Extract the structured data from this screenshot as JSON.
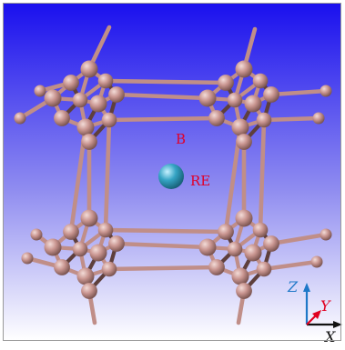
{
  "labels": {
    "boron": "B",
    "rare_earth": "RE"
  },
  "axes": {
    "x": "X",
    "y": "Y",
    "z": "Z"
  },
  "colors": {
    "background_top": "#1a10ee",
    "background_bottom": "#ffffff",
    "boron_atom": "#c99590",
    "boron_bond": "#c08e88",
    "rare_earth_atom": "#35a4c4",
    "label_red": "#e0002a",
    "axis_x": "#000000",
    "axis_y": "#e00020",
    "axis_z": "#1e78c8"
  }
}
